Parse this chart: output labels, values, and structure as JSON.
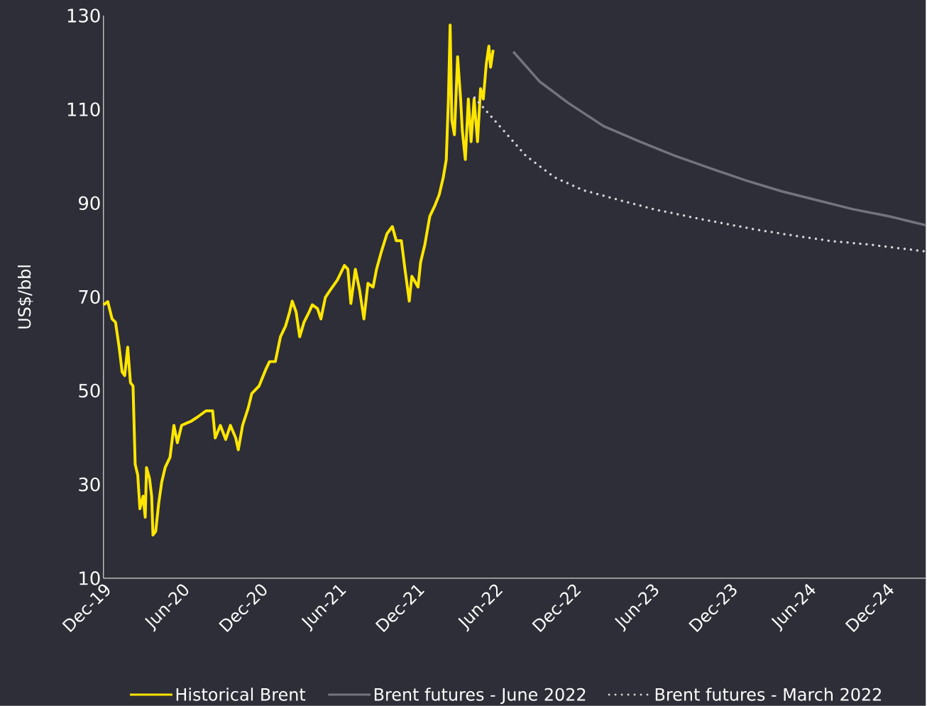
{
  "chart_data": {
    "type": "line",
    "ylabel": "US$/bbl",
    "ylim": [
      10,
      130
    ],
    "yticks": [
      10,
      30,
      50,
      70,
      90,
      110,
      130
    ],
    "xlim": [
      "2019-12",
      "2025-03"
    ],
    "xticks": [
      {
        "value": "2019-12",
        "label": "Dec-19"
      },
      {
        "value": "2020-06",
        "label": "Jun-20"
      },
      {
        "value": "2020-12",
        "label": "Dec-20"
      },
      {
        "value": "2021-06",
        "label": "Jun-21"
      },
      {
        "value": "2021-12",
        "label": "Dec-21"
      },
      {
        "value": "2022-06",
        "label": "Jun-22"
      },
      {
        "value": "2022-12",
        "label": "Dec-22"
      },
      {
        "value": "2023-06",
        "label": "Jun-23"
      },
      {
        "value": "2023-12",
        "label": "Dec-23"
      },
      {
        "value": "2024-06",
        "label": "Jun-24"
      },
      {
        "value": "2024-12",
        "label": "Dec-24"
      }
    ],
    "legend": "bottom",
    "series": [
      {
        "name": "Historical Brent",
        "color": "#ffe600",
        "line_style": "solid",
        "x": [
          "2019-12-01",
          "2019-12-11",
          "2019-12-21",
          "2019-12-29",
          "2020-01-07",
          "2020-01-14",
          "2020-01-20",
          "2020-01-27",
          "2020-02-03",
          "2020-02-09",
          "2020-02-14",
          "2020-02-20",
          "2020-02-25",
          "2020-03-02",
          "2020-03-07",
          "2020-03-10",
          "2020-03-17",
          "2020-03-22",
          "2020-03-25",
          "2020-04-01",
          "2020-04-08",
          "2020-04-15",
          "2020-04-23",
          "2020-05-04",
          "2020-05-13",
          "2020-05-21",
          "2020-05-31",
          "2020-06-10",
          "2020-06-23",
          "2020-07-06",
          "2020-07-27",
          "2020-08-12",
          "2020-08-18",
          "2020-08-30",
          "2020-09-12",
          "2020-09-23",
          "2020-10-05",
          "2020-10-11",
          "2020-10-21",
          "2020-11-04",
          "2020-11-12",
          "2020-11-29",
          "2020-12-15",
          "2020-12-23",
          "2021-01-06",
          "2021-01-18",
          "2021-01-30",
          "2021-02-09",
          "2021-02-15",
          "2021-02-24",
          "2021-03-02",
          "2021-03-12",
          "2021-03-24",
          "2021-04-01",
          "2021-04-13",
          "2021-04-21",
          "2021-05-01",
          "2021-05-12",
          "2021-05-29",
          "2021-06-15",
          "2021-06-23",
          "2021-06-30",
          "2021-07-10",
          "2021-07-20",
          "2021-07-30",
          "2021-08-09",
          "2021-08-21",
          "2021-08-29",
          "2021-09-10",
          "2021-09-23",
          "2021-10-05",
          "2021-10-14",
          "2021-10-26",
          "2021-11-04",
          "2021-11-14",
          "2021-11-20",
          "2021-12-04",
          "2021-12-10",
          "2021-12-20",
          "2022-01-01",
          "2022-01-13",
          "2022-01-23",
          "2022-02-02",
          "2022-02-09",
          "2022-02-14",
          "2022-02-18",
          "2022-02-22",
          "2022-02-28",
          "2022-03-05",
          "2022-03-12",
          "2022-03-16",
          "2022-03-23",
          "2022-03-30",
          "2022-04-06",
          "2022-04-13",
          "2022-04-21",
          "2022-04-28",
          "2022-05-04",
          "2022-05-11",
          "2022-05-17",
          "2022-05-21",
          "2022-05-27"
        ],
        "values": [
          68.3,
          69,
          65.3,
          64.6,
          59.3,
          54,
          53.2,
          59.3,
          51.7,
          51,
          34.3,
          32,
          24.8,
          27.5,
          23,
          33.6,
          31.3,
          27.5,
          19.2,
          20,
          26,
          30.5,
          33.6,
          35.8,
          42.6,
          38.9,
          42.6,
          43,
          43.5,
          44.3,
          45.7,
          45.7,
          39.9,
          42.6,
          39.6,
          42.6,
          39.9,
          37.4,
          42.6,
          46.4,
          49.4,
          51,
          54.7,
          56.2,
          56.2,
          61.5,
          63.8,
          66.8,
          69.1,
          66.8,
          61.5,
          64.6,
          66.8,
          68.3,
          67.5,
          65.3,
          69.9,
          71.4,
          73.6,
          76.7,
          75.9,
          68.6,
          75.9,
          71.4,
          65.3,
          72.9,
          72.1,
          75.9,
          79.7,
          83.5,
          85,
          82,
          82,
          75.9,
          69.1,
          74.4,
          72.1,
          77.4,
          81.2,
          87.2,
          89.5,
          91.8,
          95.5,
          99.3,
          112.2,
          128,
          107.7,
          104.6,
          121.2,
          112.2,
          105.4,
          99.3,
          112.2,
          103.1,
          112.2,
          103.1,
          114.4,
          112.2,
          119.7,
          123.5,
          119,
          122.7
        ]
      },
      {
        "name": "Brent futures - June 2022",
        "color": "#747480",
        "line_style": "solid",
        "x": [
          "2022-07-13",
          "2022-09-14",
          "2022-11-19",
          "2023-02-11",
          "2023-05-04",
          "2023-07-25",
          "2023-10-17",
          "2024-01-09",
          "2024-03-31",
          "2024-06-22",
          "2024-09-14",
          "2024-12-06",
          "2025-03-01"
        ],
        "values": [
          122.3,
          115.9,
          111.4,
          106.4,
          103.1,
          100.1,
          97.4,
          94.8,
          92.5,
          90.6,
          88.7,
          87.2,
          85.3
        ]
      },
      {
        "name": "Brent futures - March 2022",
        "color": "#d8d8dc",
        "line_style": "dotted",
        "x": [
          "2022-04-14",
          "2022-06-07",
          "2022-08-12",
          "2022-10-18",
          "2022-12-23",
          "2023-03-15",
          "2023-06-06",
          "2023-08-28",
          "2023-11-20",
          "2024-02-11",
          "2024-05-03",
          "2024-07-25",
          "2024-10-17",
          "2025-03-01"
        ],
        "values": [
          112.5,
          106.9,
          100.1,
          95.5,
          92.8,
          90.7,
          88.7,
          87.1,
          85.6,
          84.2,
          83.0,
          81.9,
          81.2,
          79.7
        ]
      }
    ]
  }
}
